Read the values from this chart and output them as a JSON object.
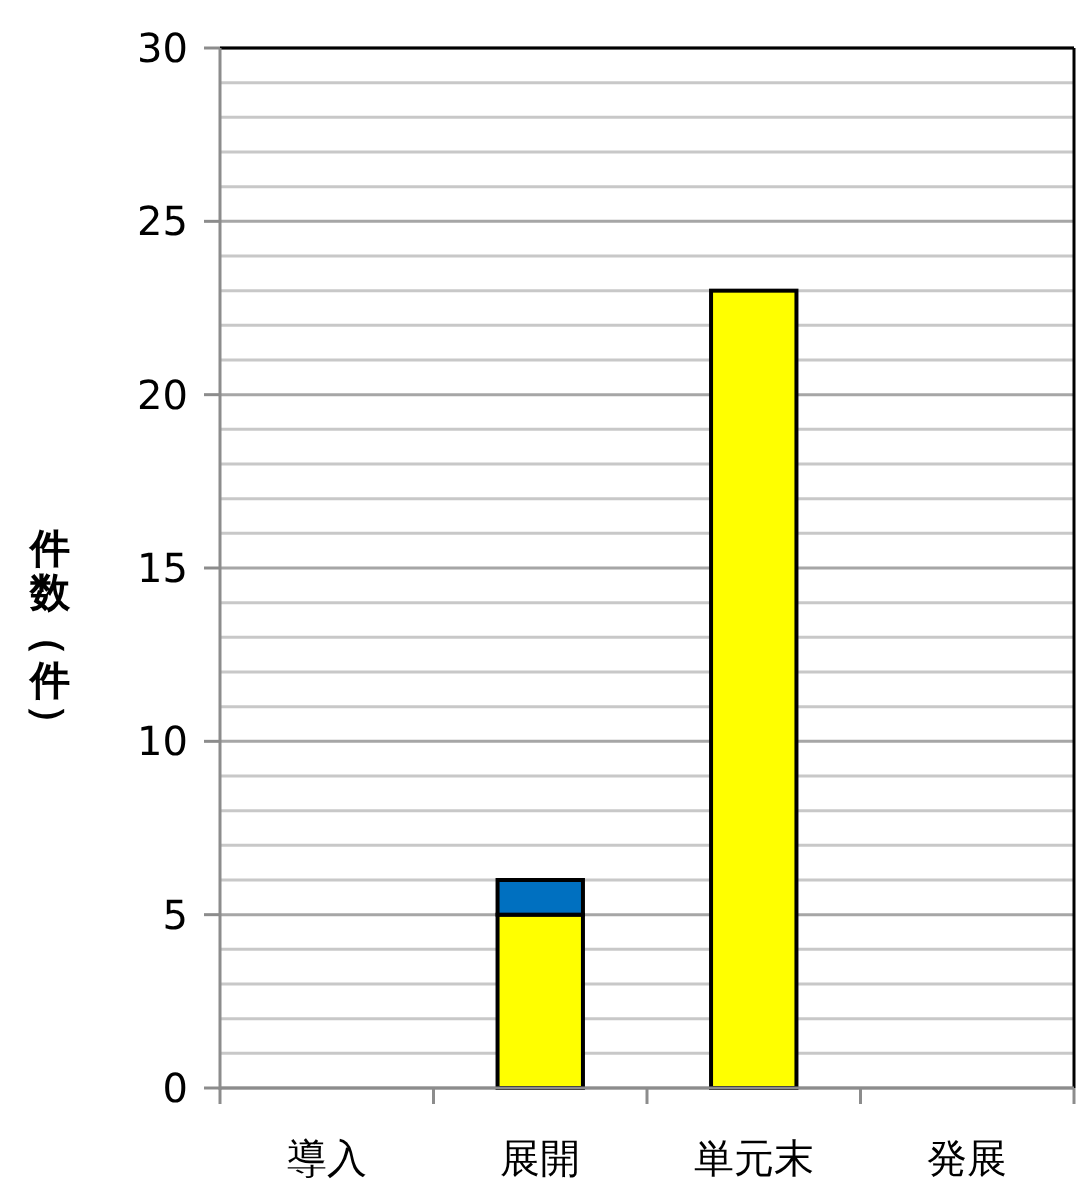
{
  "chart_data": {
    "type": "bar",
    "stacked": true,
    "ylabel": "件数（件）",
    "categories": [
      "導入",
      "展開",
      "単元末",
      "発展"
    ],
    "series": [
      {
        "color": "#ffff00",
        "values": [
          0,
          5,
          23,
          0
        ]
      },
      {
        "color": "#0070c0",
        "values": [
          0,
          1,
          0,
          0
        ]
      }
    ],
    "ylim": [
      0,
      30
    ],
    "yticks": [
      0,
      {
        "value": 1,
        "label": null
      },
      {
        "value": 2,
        "label": null
      },
      {
        "value": 3,
        "label": null
      },
      {
        "value": 4,
        "label": null
      },
      5,
      {
        "value": 6,
        "label": null
      },
      {
        "value": 7,
        "label": null
      },
      {
        "value": 8,
        "label": null
      },
      {
        "value": 9,
        "label": null
      },
      10,
      {
        "value": 11,
        "label": null
      },
      {
        "value": 12,
        "label": null
      },
      {
        "value": 13,
        "label": null
      },
      {
        "value": 14,
        "label": null
      },
      15,
      {
        "value": 16,
        "label": null
      },
      {
        "value": 17,
        "label": null
      },
      {
        "value": 18,
        "label": null
      },
      {
        "value": 19,
        "label": null
      },
      20,
      {
        "value": 21,
        "label": null
      },
      {
        "value": 22,
        "label": null
      },
      {
        "value": 23,
        "label": null
      },
      {
        "value": 24,
        "label": null
      },
      25,
      {
        "value": 26,
        "label": null
      },
      {
        "value": 27,
        "label": null
      },
      {
        "value": 28,
        "label": null
      },
      {
        "value": 29,
        "label": null
      },
      30
    ],
    "grid": "y"
  }
}
